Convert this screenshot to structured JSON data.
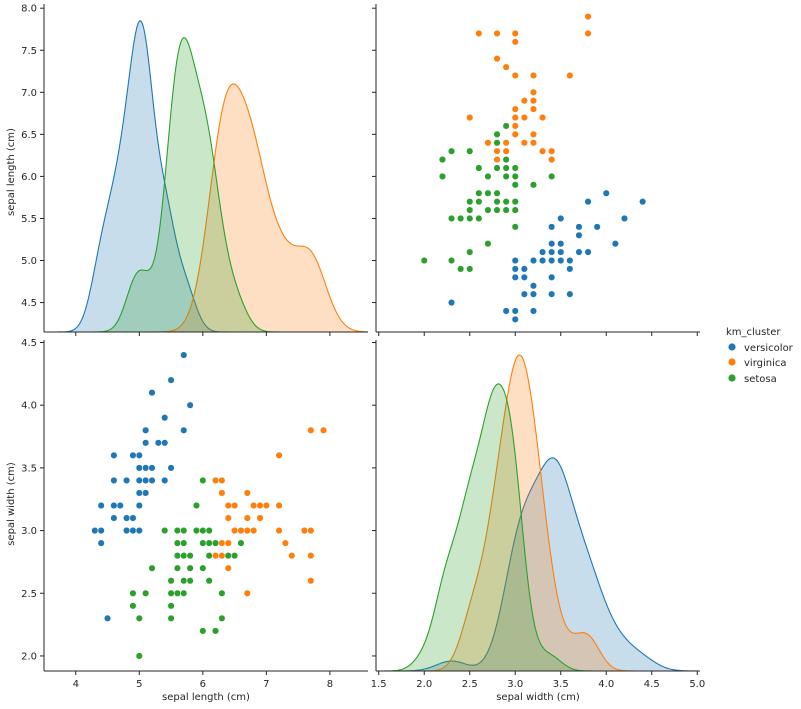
{
  "chart_data": {
    "type": "scatter",
    "kind": "pairplot",
    "variables": [
      "sepal length (cm)",
      "sepal width (cm)"
    ],
    "hue": "km_cluster",
    "legend": {
      "title": "km_cluster",
      "position": "right",
      "entries": [
        {
          "name": "versicolor",
          "color": "#1f77b4"
        },
        {
          "name": "virginica",
          "color": "#ff7f0e"
        },
        {
          "name": "setosa",
          "color": "#2ca02c"
        }
      ]
    },
    "axes": {
      "sepal_length": {
        "label": "sepal length (cm)",
        "range": [
          3.5,
          8.6
        ],
        "ticks": [
          4,
          5,
          6,
          7,
          8
        ],
        "ylim": [
          4.15,
          8.05
        ],
        "yticks": [
          4.5,
          5.0,
          5.5,
          6.0,
          6.5,
          7.0,
          7.5,
          8.0
        ]
      },
      "sepal_width": {
        "label": "sepal width (cm)",
        "range": [
          1.47,
          5.03
        ],
        "ticks": [
          1.5,
          2.0,
          2.5,
          3.0,
          3.5,
          4.0,
          4.5,
          5.0
        ],
        "ylim": [
          1.88,
          4.52
        ],
        "yticks": [
          2.0,
          2.5,
          3.0,
          3.5,
          4.0,
          4.5
        ]
      }
    },
    "tick_labels": {
      "length_y": [
        "4.5",
        "5.0",
        "5.5",
        "6.0",
        "6.5",
        "7.0",
        "7.5",
        "8.0"
      ],
      "width_y": [
        "2.0",
        "2.5",
        "3.0",
        "3.5",
        "4.0",
        "4.5"
      ],
      "length_x": [
        "4",
        "5",
        "6",
        "7",
        "8"
      ],
      "width_x": [
        "1.5",
        "2.0",
        "2.5",
        "3.0",
        "3.5",
        "4.0",
        "4.5",
        "5.0"
      ]
    },
    "points": {
      "versicolor": [
        [
          5.1,
          3.5
        ],
        [
          4.9,
          3.0
        ],
        [
          4.7,
          3.2
        ],
        [
          4.6,
          3.1
        ],
        [
          5.0,
          3.6
        ],
        [
          5.4,
          3.9
        ],
        [
          4.6,
          3.4
        ],
        [
          5.0,
          3.4
        ],
        [
          4.4,
          2.9
        ],
        [
          4.9,
          3.1
        ],
        [
          5.4,
          3.7
        ],
        [
          4.8,
          3.4
        ],
        [
          4.8,
          3.0
        ],
        [
          4.3,
          3.0
        ],
        [
          5.8,
          4.0
        ],
        [
          5.7,
          4.4
        ],
        [
          5.4,
          3.9
        ],
        [
          5.1,
          3.5
        ],
        [
          5.7,
          3.8
        ],
        [
          5.1,
          3.8
        ],
        [
          5.4,
          3.4
        ],
        [
          5.1,
          3.7
        ],
        [
          4.6,
          3.6
        ],
        [
          5.1,
          3.3
        ],
        [
          4.8,
          3.4
        ],
        [
          5.0,
          3.0
        ],
        [
          5.0,
          3.4
        ],
        [
          5.2,
          3.5
        ],
        [
          5.2,
          3.4
        ],
        [
          4.7,
          3.2
        ],
        [
          4.8,
          3.1
        ],
        [
          5.4,
          3.4
        ],
        [
          5.2,
          4.1
        ],
        [
          5.5,
          4.2
        ],
        [
          4.9,
          3.1
        ],
        [
          5.0,
          3.2
        ],
        [
          5.5,
          3.5
        ],
        [
          4.9,
          3.6
        ],
        [
          4.4,
          3.0
        ],
        [
          5.1,
          3.4
        ],
        [
          5.0,
          3.5
        ],
        [
          4.5,
          2.3
        ],
        [
          4.4,
          3.2
        ],
        [
          5.0,
          3.5
        ],
        [
          5.1,
          3.8
        ],
        [
          4.8,
          3.0
        ],
        [
          5.1,
          3.8
        ],
        [
          4.6,
          3.2
        ],
        [
          5.3,
          3.7
        ],
        [
          5.0,
          3.3
        ]
      ],
      "virginica": [
        [
          7.0,
          3.2
        ],
        [
          6.9,
          3.1
        ],
        [
          6.3,
          3.3
        ],
        [
          6.5,
          3.0
        ],
        [
          7.6,
          3.0
        ],
        [
          7.3,
          2.9
        ],
        [
          6.7,
          2.5
        ],
        [
          7.2,
          3.6
        ],
        [
          6.5,
          3.2
        ],
        [
          6.4,
          2.7
        ],
        [
          6.8,
          3.0
        ],
        [
          6.4,
          3.2
        ],
        [
          7.7,
          3.8
        ],
        [
          7.7,
          2.6
        ],
        [
          6.9,
          3.2
        ],
        [
          7.7,
          2.8
        ],
        [
          6.7,
          3.3
        ],
        [
          7.2,
          3.2
        ],
        [
          6.2,
          2.8
        ],
        [
          6.1,
          3.0
        ],
        [
          6.4,
          2.8
        ],
        [
          7.2,
          3.0
        ],
        [
          7.4,
          2.8
        ],
        [
          7.9,
          3.8
        ],
        [
          6.4,
          2.8
        ],
        [
          6.3,
          2.8
        ],
        [
          6.1,
          2.6
        ],
        [
          7.7,
          3.0
        ],
        [
          6.3,
          3.4
        ],
        [
          6.4,
          3.1
        ],
        [
          6.9,
          3.1
        ],
        [
          6.7,
          3.1
        ],
        [
          6.9,
          3.1
        ],
        [
          6.8,
          3.2
        ],
        [
          6.7,
          3.3
        ],
        [
          6.7,
          3.0
        ],
        [
          6.5,
          3.0
        ],
        [
          6.2,
          3.4
        ],
        [
          6.6,
          3.0
        ],
        [
          6.7,
          3.1
        ],
        [
          6.3,
          2.9
        ],
        [
          6.3,
          2.5
        ],
        [
          6.4,
          2.9
        ]
      ],
      "setosa": [
        [
          5.5,
          2.3
        ],
        [
          5.7,
          2.8
        ],
        [
          4.9,
          2.4
        ],
        [
          6.6,
          2.9
        ],
        [
          5.2,
          2.7
        ],
        [
          5.0,
          2.0
        ],
        [
          5.9,
          3.0
        ],
        [
          6.0,
          2.2
        ],
        [
          6.1,
          2.9
        ],
        [
          5.6,
          2.9
        ],
        [
          5.6,
          3.0
        ],
        [
          5.8,
          2.7
        ],
        [
          6.2,
          2.2
        ],
        [
          5.6,
          2.5
        ],
        [
          5.9,
          3.2
        ],
        [
          6.1,
          2.8
        ],
        [
          6.1,
          2.8
        ],
        [
          6.0,
          2.9
        ],
        [
          5.7,
          2.6
        ],
        [
          5.5,
          2.4
        ],
        [
          5.5,
          2.4
        ],
        [
          5.8,
          2.7
        ],
        [
          6.0,
          2.7
        ],
        [
          5.4,
          3.0
        ],
        [
          6.0,
          3.4
        ],
        [
          6.3,
          2.3
        ],
        [
          5.6,
          3.0
        ],
        [
          5.5,
          2.5
        ],
        [
          5.5,
          2.6
        ],
        [
          6.1,
          3.0
        ],
        [
          5.8,
          2.6
        ],
        [
          5.0,
          2.3
        ],
        [
          5.6,
          2.7
        ],
        [
          5.7,
          3.0
        ],
        [
          5.7,
          2.9
        ],
        [
          6.2,
          2.9
        ],
        [
          5.1,
          2.5
        ],
        [
          5.7,
          2.8
        ],
        [
          5.8,
          2.7
        ],
        [
          5.8,
          2.8
        ],
        [
          5.7,
          2.5
        ],
        [
          6.0,
          2.2
        ],
        [
          5.6,
          2.8
        ],
        [
          4.9,
          2.5
        ],
        [
          5.4,
          3.0
        ],
        [
          5.9,
          3.0
        ],
        [
          6.2,
          2.2
        ],
        [
          6.3,
          2.5
        ],
        [
          6.0,
          3.0
        ],
        [
          6.5,
          2.8
        ],
        [
          5.7,
          3.0
        ],
        [
          5.8,
          2.7
        ],
        [
          5.5,
          2.5
        ],
        [
          6.4,
          2.8
        ],
        [
          5.6,
          2.8
        ],
        [
          6.1,
          2.6
        ],
        [
          5.8,
          2.7
        ]
      ]
    },
    "density_peaks": {
      "sepal_length": {
        "versicolor": 7.85,
        "virginica": 7.1,
        "setosa": 7.65
      },
      "sepal_width": {
        "versicolor": 3.58,
        "virginica": 4.4,
        "setosa": 4.17
      }
    }
  }
}
